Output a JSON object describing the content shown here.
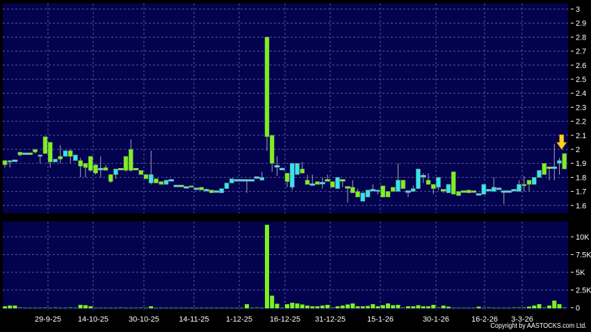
{
  "chart_data": [
    {
      "type": "candlestick",
      "title": "",
      "ylim": [
        1.6,
        3.0
      ],
      "grid": true,
      "y_ticks": [
        "1.6",
        "1.7",
        "1.8",
        "1.9",
        "2",
        "2.1",
        "2.2",
        "2.3",
        "2.4",
        "2.5",
        "2.6",
        "2.7",
        "2.8",
        "2.9",
        "3"
      ],
      "x_ticks": [
        "29-9-25",
        "14-10-25",
        "30-10-25",
        "14-11-25",
        "1-12-25",
        "16-12-25",
        "31-12-25",
        "15-1-26",
        "30-1-26",
        "16-2-26",
        "3-3-26"
      ],
      "candle_fields": [
        "open",
        "high",
        "low",
        "close",
        "lime"
      ],
      "candles": [
        [
          1.92,
          1.92,
          1.87,
          1.89,
          1
        ],
        [
          1.91,
          1.92,
          1.87,
          1.92,
          0
        ],
        [
          1.92,
          1.92,
          1.92,
          1.92,
          0
        ],
        [
          1.96,
          1.98,
          1.95,
          1.98,
          1
        ],
        [
          1.97,
          1.97,
          1.97,
          1.97,
          0
        ],
        [
          1.97,
          1.97,
          1.96,
          1.97,
          1
        ],
        [
          1.98,
          2.0,
          1.97,
          2.0,
          1
        ],
        [
          1.95,
          1.96,
          1.9,
          1.96,
          0
        ],
        [
          1.97,
          2.09,
          1.97,
          2.09,
          1
        ],
        [
          2.05,
          2.05,
          1.87,
          1.91,
          1
        ],
        [
          1.91,
          1.93,
          1.91,
          1.93,
          0
        ],
        [
          1.93,
          2.03,
          1.9,
          1.95,
          1
        ],
        [
          1.95,
          1.99,
          1.95,
          1.99,
          0
        ],
        [
          1.99,
          2.0,
          1.9,
          1.95,
          1
        ],
        [
          1.96,
          1.96,
          1.92,
          1.92,
          0
        ],
        [
          1.92,
          1.94,
          1.8,
          1.88,
          1
        ],
        [
          1.9,
          1.9,
          1.8,
          1.87,
          1
        ],
        [
          1.85,
          1.95,
          1.84,
          1.95,
          1
        ],
        [
          1.89,
          1.89,
          1.82,
          1.83,
          1
        ],
        [
          1.86,
          1.95,
          1.8,
          1.86,
          0
        ],
        [
          1.87,
          1.89,
          1.85,
          1.85,
          1
        ],
        [
          1.82,
          1.82,
          1.76,
          1.77,
          1
        ],
        [
          1.82,
          1.86,
          1.79,
          1.86,
          0
        ],
        [
          1.86,
          1.86,
          1.86,
          1.86,
          1
        ],
        [
          1.85,
          1.95,
          1.84,
          1.95,
          1
        ],
        [
          1.85,
          2.07,
          1.84,
          2.0,
          1
        ],
        [
          1.86,
          1.86,
          1.86,
          1.86,
          1
        ],
        [
          1.85,
          1.85,
          1.82,
          1.82,
          1
        ],
        [
          1.82,
          1.82,
          1.79,
          1.79,
          1
        ],
        [
          1.76,
          1.99,
          1.75,
          1.82,
          0
        ],
        [
          1.79,
          1.79,
          1.76,
          1.76,
          1
        ],
        [
          1.77,
          1.77,
          1.75,
          1.75,
          1
        ],
        [
          1.75,
          1.78,
          1.75,
          1.78,
          0
        ],
        [
          1.78,
          1.78,
          1.78,
          1.78,
          0
        ],
        [
          1.74,
          1.74,
          1.74,
          1.74,
          0
        ],
        [
          1.74,
          1.74,
          1.73,
          1.74,
          1
        ],
        [
          1.73,
          1.73,
          1.73,
          1.73,
          0
        ],
        [
          1.74,
          1.74,
          1.73,
          1.73,
          1
        ],
        [
          1.72,
          1.72,
          1.72,
          1.72,
          0
        ],
        [
          1.73,
          1.73,
          1.71,
          1.71,
          1
        ],
        [
          1.71,
          1.72,
          1.71,
          1.71,
          0
        ],
        [
          1.71,
          1.71,
          1.69,
          1.69,
          1
        ],
        [
          1.7,
          1.7,
          1.7,
          1.7,
          0
        ],
        [
          1.69,
          1.72,
          1.69,
          1.72,
          0
        ],
        [
          1.72,
          1.76,
          1.72,
          1.76,
          0
        ],
        [
          1.76,
          1.79,
          1.76,
          1.79,
          0
        ],
        [
          1.78,
          1.78,
          1.78,
          1.78,
          0
        ],
        [
          1.78,
          1.78,
          1.78,
          1.78,
          0
        ],
        [
          1.78,
          1.78,
          1.69,
          1.78,
          0
        ],
        [
          1.78,
          1.78,
          1.78,
          1.78,
          0
        ],
        [
          1.8,
          1.8,
          1.8,
          1.8,
          0
        ],
        [
          1.78,
          1.84,
          1.78,
          1.8,
          0
        ],
        [
          2.8,
          2.8,
          1.99,
          2.09,
          1
        ],
        [
          2.1,
          2.1,
          1.84,
          1.9,
          1
        ],
        [
          1.88,
          1.95,
          1.81,
          1.88,
          0
        ],
        [
          1.86,
          1.87,
          1.86,
          1.86,
          0
        ],
        [
          1.83,
          1.83,
          1.73,
          1.77,
          1
        ],
        [
          1.73,
          1.9,
          1.71,
          1.9,
          0
        ],
        [
          1.82,
          1.9,
          1.82,
          1.9,
          0
        ],
        [
          1.86,
          1.91,
          1.83,
          1.83,
          1
        ],
        [
          1.78,
          1.82,
          1.75,
          1.75,
          1
        ],
        [
          1.75,
          1.82,
          1.74,
          1.75,
          0
        ],
        [
          1.77,
          1.77,
          1.75,
          1.75,
          1
        ],
        [
          1.76,
          1.8,
          1.72,
          1.76,
          0
        ],
        [
          1.78,
          1.82,
          1.78,
          1.78,
          1
        ],
        [
          1.77,
          1.77,
          1.73,
          1.73,
          1
        ],
        [
          1.72,
          1.8,
          1.72,
          1.8,
          0
        ],
        [
          1.78,
          1.78,
          1.73,
          1.78,
          1
        ],
        [
          1.73,
          1.73,
          1.62,
          1.73,
          1
        ],
        [
          1.73,
          1.78,
          1.69,
          1.69,
          1
        ],
        [
          1.7,
          1.72,
          1.66,
          1.66,
          1
        ],
        [
          1.63,
          1.69,
          1.63,
          1.69,
          0
        ],
        [
          1.66,
          1.71,
          1.66,
          1.71,
          0
        ],
        [
          1.71,
          1.75,
          1.71,
          1.71,
          0
        ],
        [
          1.71,
          1.71,
          1.68,
          1.7,
          0
        ],
        [
          1.74,
          1.74,
          1.66,
          1.66,
          1
        ],
        [
          1.7,
          1.7,
          1.66,
          1.66,
          1
        ],
        [
          1.73,
          1.73,
          1.7,
          1.7,
          1
        ],
        [
          1.7,
          1.9,
          1.7,
          1.78,
          0
        ],
        [
          1.78,
          1.78,
          1.72,
          1.72,
          1
        ],
        [
          1.7,
          1.7,
          1.66,
          1.7,
          0
        ],
        [
          1.7,
          1.74,
          1.7,
          1.72,
          0
        ],
        [
          1.72,
          1.86,
          1.72,
          1.86,
          0
        ],
        [
          1.81,
          1.83,
          1.76,
          1.81,
          0
        ],
        [
          1.78,
          1.83,
          1.75,
          1.75,
          1
        ],
        [
          1.75,
          1.75,
          1.68,
          1.72,
          1
        ],
        [
          1.73,
          1.8,
          1.71,
          1.8,
          0
        ],
        [
          1.71,
          1.71,
          1.69,
          1.71,
          1
        ],
        [
          1.69,
          1.75,
          1.69,
          1.75,
          0
        ],
        [
          1.84,
          1.84,
          1.68,
          1.68,
          1
        ],
        [
          1.7,
          1.7,
          1.67,
          1.67,
          1
        ],
        [
          1.7,
          1.7,
          1.7,
          1.7,
          1
        ],
        [
          1.71,
          1.71,
          1.69,
          1.69,
          1
        ],
        [
          1.7,
          1.7,
          1.7,
          1.7,
          1
        ],
        [
          1.68,
          1.68,
          1.68,
          1.68,
          0
        ],
        [
          1.68,
          1.75,
          1.68,
          1.75,
          0
        ],
        [
          1.71,
          1.71,
          1.71,
          1.71,
          0
        ],
        [
          1.7,
          1.8,
          1.7,
          1.73,
          0
        ],
        [
          1.72,
          1.72,
          1.72,
          1.72,
          0
        ],
        [
          1.7,
          1.7,
          1.61,
          1.7,
          0
        ],
        [
          1.7,
          1.7,
          1.7,
          1.7,
          0
        ],
        [
          1.71,
          1.71,
          1.71,
          1.71,
          0
        ],
        [
          1.7,
          1.78,
          1.7,
          1.75,
          0
        ],
        [
          1.75,
          1.81,
          1.7,
          1.74,
          1
        ],
        [
          1.78,
          1.78,
          1.7,
          1.75,
          1
        ],
        [
          1.75,
          1.8,
          1.75,
          1.8,
          0
        ],
        [
          1.8,
          1.85,
          1.8,
          1.85,
          0
        ],
        [
          1.9,
          1.9,
          1.82,
          1.82,
          1
        ],
        [
          1.87,
          1.87,
          1.78,
          1.87,
          1
        ],
        [
          1.87,
          2.04,
          1.78,
          1.87,
          0
        ],
        [
          1.9,
          1.94,
          1.82,
          1.92,
          0
        ],
        [
          1.97,
          1.97,
          1.86,
          1.86,
          1
        ]
      ],
      "marker": "latest-arrow"
    },
    {
      "type": "bar",
      "title": "",
      "ylim": [
        0,
        11500
      ],
      "grid": true,
      "y_ticks": [
        "0",
        "2.5K",
        "5K",
        "7.5K",
        "10K"
      ],
      "y_tick_values": [
        0,
        2500,
        5000,
        7500,
        10000
      ],
      "values": [
        200,
        300,
        300,
        100,
        50,
        50,
        50,
        50,
        80,
        50,
        100,
        50,
        50,
        100,
        50,
        400,
        350,
        200,
        50,
        50,
        50,
        50,
        50,
        100,
        50,
        50,
        50,
        80,
        50,
        200,
        50,
        50,
        50,
        50,
        50,
        50,
        50,
        50,
        50,
        50,
        50,
        50,
        50,
        50,
        50,
        50,
        50,
        50,
        500,
        50,
        100,
        50,
        11700,
        1700,
        550,
        50,
        500,
        700,
        600,
        450,
        300,
        200,
        200,
        300,
        400,
        100,
        200,
        300,
        450,
        600,
        200,
        200,
        250,
        500,
        200,
        350,
        600,
        350,
        400,
        100,
        200,
        200,
        350,
        200,
        200,
        400,
        100,
        300,
        150,
        50,
        50,
        50,
        50,
        50,
        150,
        50,
        100,
        50,
        50,
        50,
        50,
        100,
        100,
        100,
        150,
        300,
        500,
        100,
        300,
        1000,
        500,
        100
      ]
    }
  ],
  "colors": {
    "background": "#000000",
    "panel": "#02024e",
    "grid": "#5c5ca0",
    "lime": "#7cf21c",
    "cyan": "#30e6f4",
    "wick": "#a8a8b8",
    "arrow": "#ffd21e",
    "text": "#ffffff"
  },
  "copyright": "Copyright by AASTOCKS.com Ltd."
}
